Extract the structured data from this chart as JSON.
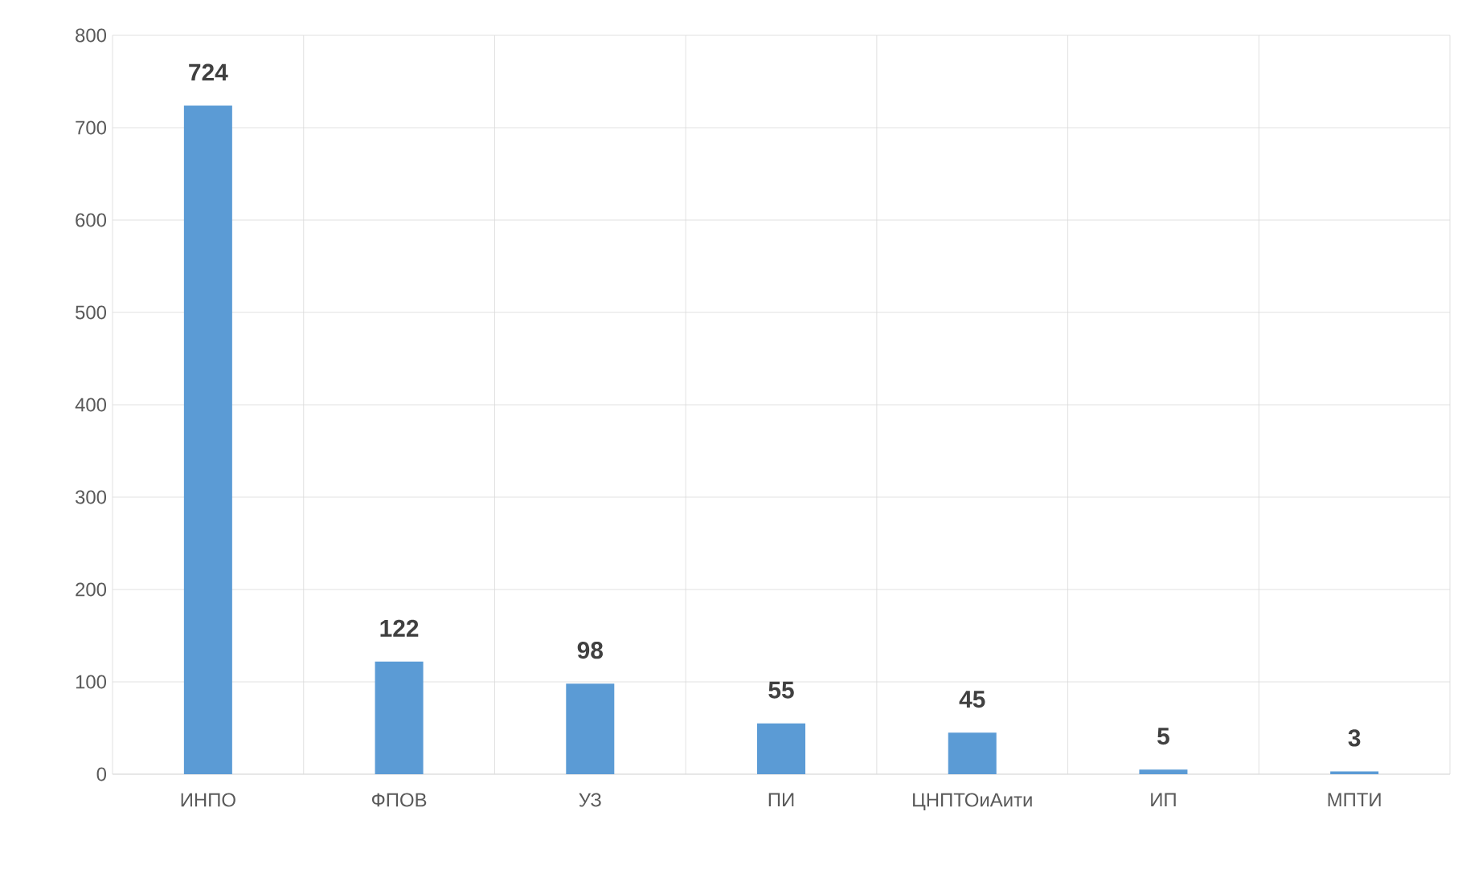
{
  "chart_data": {
    "type": "bar",
    "categories": [
      "ИНПО",
      "ФПОВ",
      "УЗ",
      "ПИ",
      "ЦНПТОиАити",
      "ИП",
      "МПТИ"
    ],
    "values": [
      724,
      122,
      98,
      55,
      45,
      5,
      3
    ],
    "color": "#5b9bd5",
    "ylim": [
      0,
      800
    ],
    "yticks": [
      0,
      100,
      200,
      300,
      400,
      500,
      600,
      700,
      800
    ],
    "grid": true,
    "data_labels": true
  }
}
